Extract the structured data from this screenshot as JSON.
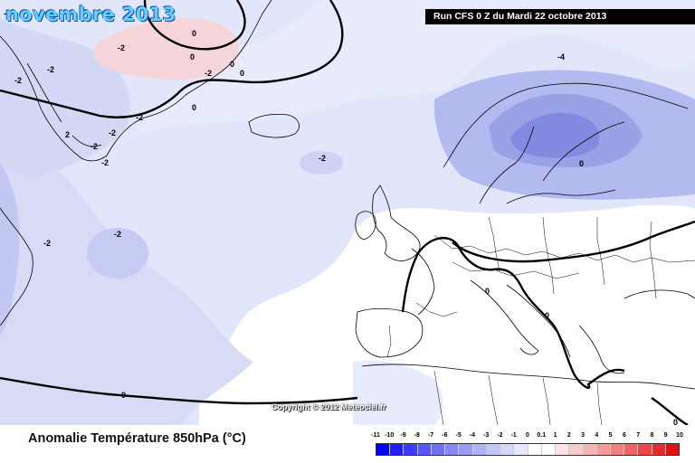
{
  "header": {
    "month_title": "novembre 2013",
    "run_info": "Run CFS 0 Z du Mardi 22 octobre 2013"
  },
  "map": {
    "copyright": "Copyright © 2012 Meteociel.fr",
    "contour_labels": [
      "-2",
      "-2",
      "-2",
      "-2",
      "-2",
      "-2",
      "-2",
      "-2",
      "-2",
      "-2",
      "-2",
      "-2",
      "-4",
      "0",
      "0",
      "0",
      "0",
      "0",
      "0",
      "0",
      "0",
      "0",
      "0",
      "2"
    ],
    "colors": {
      "ocean_base": "#e2e6fa",
      "anom_neg_1": "#ced4f5",
      "anom_neg_2": "#b7bef0",
      "anom_neg_3": "#9ea5e8",
      "anom_neg_4": "#8088de",
      "anom_pos_1": "#f6d2d8",
      "land_white": "#ffffff"
    }
  },
  "footer": {
    "title": "Anomalie Température 850hPa (°C)"
  },
  "legend": {
    "ticks": [
      "-11",
      "-10",
      "-9",
      "-8",
      "-7",
      "-6",
      "-5",
      "-4",
      "-3",
      "-2",
      "-1",
      "0",
      "0.1",
      "1",
      "2",
      "3",
      "4",
      "5",
      "6",
      "7",
      "8",
      "9",
      "10"
    ],
    "colors": [
      "#0000ff",
      "#2020ff",
      "#3c3cfc",
      "#5858fa",
      "#7070f8",
      "#8686f6",
      "#9c9cf4",
      "#b0b0f6",
      "#c4c4f8",
      "#d6d6fa",
      "#e8e8fc",
      "#ffffff",
      "#ffffff",
      "#fce4e4",
      "#f9cccc",
      "#f6b4b4",
      "#f39a9a",
      "#f08080",
      "#ec6464",
      "#e84848",
      "#e42c2c",
      "#e01010"
    ]
  }
}
